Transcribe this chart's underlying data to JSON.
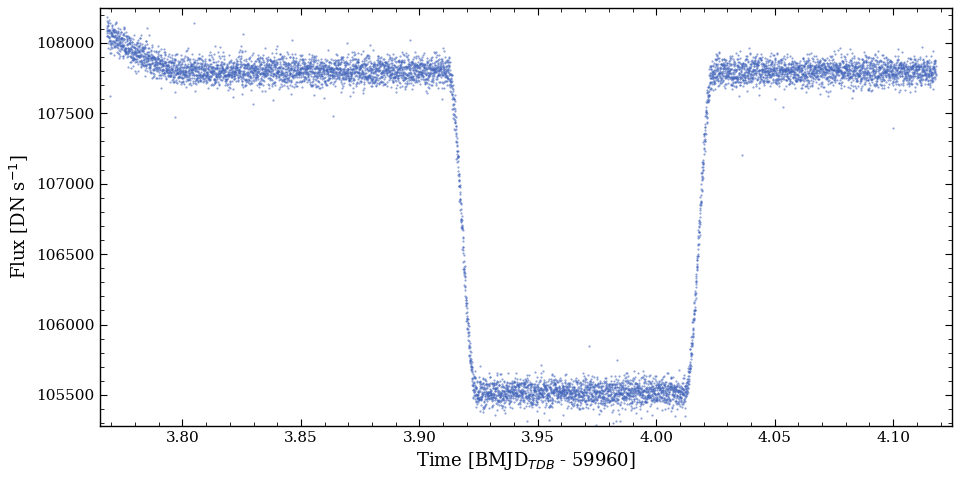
{
  "xlabel": "Time [BMJD$_{TDB}$ - 59960]",
  "ylabel": "Flux [DN s$^{-1}$]",
  "dot_color": "#4466bb",
  "dot_size": 2.5,
  "dot_alpha": 0.6,
  "xlim": [
    3.765,
    4.125
  ],
  "ylim": [
    105280,
    108250
  ],
  "xticks": [
    3.8,
    3.85,
    3.9,
    3.95,
    4.0,
    4.05,
    4.1
  ],
  "yticks": [
    105500,
    106000,
    106500,
    107000,
    107500,
    108000
  ],
  "figsize": [
    9.6,
    4.8
  ],
  "dpi": 100,
  "baseline_flux": 107800,
  "transit_depth": 2280,
  "transit_start": 3.918,
  "transit_end": 4.018,
  "ingress_duration": 0.006,
  "egress_duration": 0.006,
  "noise_level": 55,
  "n_points": 8000,
  "x_start": 3.768,
  "x_end": 4.118,
  "ramp_amplitude": 280,
  "ramp_start": 3.768,
  "ramp_end": 3.8
}
